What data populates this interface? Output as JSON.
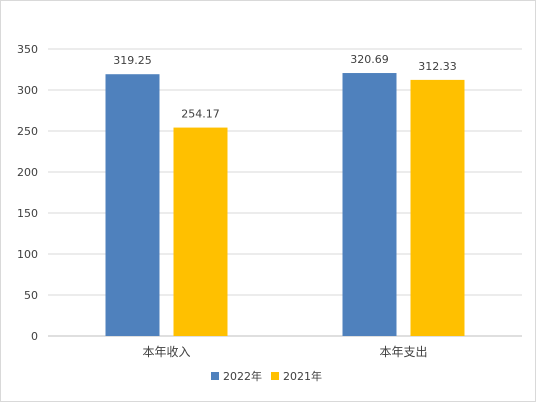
{
  "chart_data": {
    "type": "bar",
    "title": "",
    "xlabel": "",
    "ylabel": "",
    "categories": [
      "本年收入",
      "本年支出"
    ],
    "series": [
      {
        "name": "2022年",
        "values": [
          319.25,
          320.69
        ],
        "color": "#4f81bd"
      },
      {
        "name": "2021年",
        "values": [
          254.17,
          312.33
        ],
        "color": "#ffc000"
      }
    ],
    "value_labels": [
      [
        "319.25",
        "320.69"
      ],
      [
        "254.17",
        "312.33"
      ]
    ],
    "ylim": [
      0,
      350
    ],
    "yticks": [
      0,
      50,
      100,
      150,
      200,
      250,
      300,
      350
    ],
    "ytick_labels": [
      "0",
      "50",
      "100",
      "150",
      "200",
      "250",
      "300",
      "350"
    ],
    "grid": true,
    "legend_position": "bottom"
  }
}
